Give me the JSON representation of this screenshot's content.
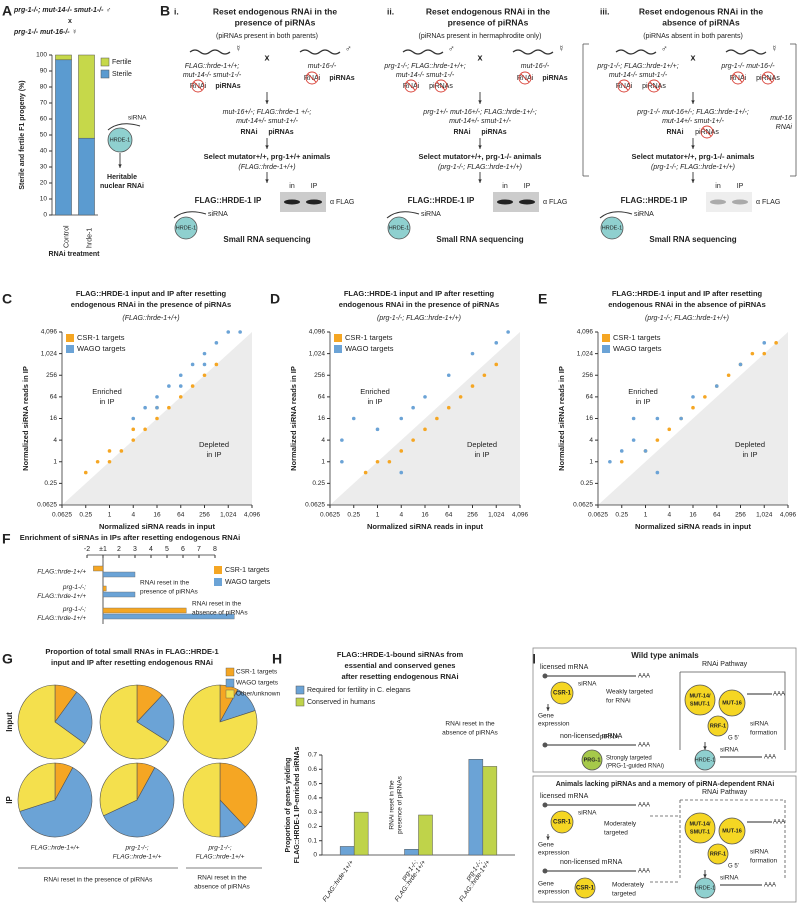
{
  "panel_labels": [
    "A",
    "B",
    "C",
    "D",
    "E",
    "F",
    "G",
    "H",
    "I"
  ],
  "A": {
    "title": [
      "prg-1-/-; mut-14-/- smut-1-/- ♂",
      "x",
      "prg-1-/- mut-16-/- ☿"
    ],
    "sirna": "siRNA",
    "hrde1": "HRDE-1",
    "outcome": [
      "Heritable",
      "nuclear RNAi"
    ]
  },
  "B": {
    "shared": {
      "cross": "x",
      "rnai": "RNAi",
      "pirnas": "piRNAs",
      "ip": "FLAG::HRDE-1 IP",
      "gel_in": "in",
      "gel_ip": "IP",
      "antibody": "α FLAG",
      "sirna": "siRNA",
      "hrde1": "HRDE-1",
      "seq": "Small RNA sequencing",
      "side": [
        "mut-16",
        "RNAi"
      ]
    },
    "columns": [
      {
        "numeral": "i.",
        "title": [
          "Reset endogenous RNAi in the",
          "presence of piRNAs"
        ],
        "note": "(piRNAs present in both parents)",
        "left_symbol": "☿",
        "right_symbol": "♂",
        "left": [
          "FLAG::hrde-1+/+;",
          "mut-14-/- smut-1-/-"
        ],
        "right": [
          "mut-16-/-"
        ],
        "pirnas_present": [
          true,
          true
        ],
        "progeny": [
          "mut-16+/-; FLAG::hrde-1 +/-;",
          "mut-14+/- smut-1+/-"
        ],
        "progeny_pirnas": true,
        "select": "Select mutator+/+, prg-1+/+ animals",
        "genotype": "(FLAG::hrde-1+/+)"
      },
      {
        "numeral": "ii.",
        "title": [
          "Reset endogenous RNAi in the",
          "presence of piRNAs"
        ],
        "note": "(piRNAs present in hermaphrodite only)",
        "left_symbol": "♂",
        "right_symbol": "☿",
        "left": [
          "prg-1-/-; FLAG::hrde-1+/+;",
          "mut-14-/- smut-1-/-"
        ],
        "right": [
          "mut-16-/-"
        ],
        "pirnas_present": [
          false,
          true
        ],
        "progeny": [
          "prg-1+/- mut-16+/-; FLAG::hrde-1+/-;",
          "mut-14+/- smut-1+/-"
        ],
        "progeny_pirnas": true,
        "select": "Select mutator+/+, prg-1-/- animals",
        "genotype": "(prg-1-/-; FLAG::hrde-1+/+)"
      },
      {
        "numeral": "iii.",
        "title": [
          "Reset endogenous RNAi in the",
          "absence of piRNAs"
        ],
        "note": "(piRNAs absent in both parents)",
        "left_symbol": "♂",
        "right_symbol": "☿",
        "left": [
          "prg-1-/-; FLAG::hrde-1+/+;",
          "mut-14-/- smut-1-/-"
        ],
        "right": [
          "prg-1-/- mut-16-/-"
        ],
        "pirnas_present": [
          false,
          false
        ],
        "progeny": [
          "prg-1-/- mut-16+/-; FLAG::hrde-1+/-;",
          "mut-14+/- smut-1+/-"
        ],
        "progeny_pirnas": false,
        "select": "Select mutator+/+, prg-1-/- animals",
        "genotype": "(prg-1-/-; FLAG::hrde-1+/+)"
      }
    ]
  },
  "I": {
    "top_title": "Wild type animals",
    "bottom_title": "Animals lacking piRNAs and a memory of piRNA-dependent RNAi",
    "licensed": "licensed mRNA",
    "nonlicensed": "non-licensed mRNA",
    "csr1": "CSR-1",
    "prg1": "PRG-1",
    "sirna": "siRNA",
    "pirna": "piRNA",
    "weak": [
      "Weakly targeted",
      "for RNAi"
    ],
    "strong": [
      "Strongly targeted",
      "(PRG-1-guided RNAi)"
    ],
    "moderate": [
      "Moderately",
      "targeted"
    ],
    "gene": [
      "Gene",
      "expression"
    ],
    "pathway": "RNAi Pathway",
    "mut14": [
      "MUT-14/",
      "SMUT-1"
    ],
    "mut16": "MUT-16",
    "rrf1": "RRF-1",
    "g5": "G 5'",
    "formation": [
      "siRNA",
      "formation"
    ],
    "aaa": "AAA",
    "hrde1": "HRDE-1"
  },
  "chart_data": [
    {
      "type": "bar",
      "stacked": true,
      "categories": [
        "Control",
        "hrde-1"
      ],
      "series": [
        {
          "name": "Fertile",
          "color": "#c6d84a",
          "values": [
            3,
            52
          ]
        },
        {
          "name": "Sterile",
          "color": "#5b9bd0",
          "values": [
            97,
            48
          ]
        }
      ],
      "ylim": [
        0,
        100
      ],
      "yticks": [
        0,
        10,
        20,
        30,
        40,
        50,
        60,
        70,
        80,
        90,
        100
      ],
      "ylabel": "Sterile and fertile F1 progeny (%)",
      "xlabel": "RNAi treatment"
    },
    {
      "type": "scatter",
      "title": [
        "FLAG::HRDE-1 input and IP after resetting",
        "endogenous RNAi in the presence of piRNAs"
      ],
      "subtitle": "(FLAG::hrde-1+/+)",
      "series": [
        {
          "name": "CSR-1 targets",
          "color": "#f5a623",
          "x": [
            0.25,
            0.5,
            1,
            1,
            2,
            4,
            4,
            8,
            16,
            16,
            32,
            64,
            128,
            256,
            512
          ],
          "values": [
            0.5,
            1,
            1,
            2,
            2,
            4,
            8,
            8,
            16,
            32,
            32,
            64,
            128,
            256,
            512
          ]
        },
        {
          "name": "WAGO targets",
          "color": "#6ba3d6",
          "x": [
            4,
            8,
            16,
            32,
            64,
            128,
            256,
            512,
            1024,
            2048,
            16,
            64,
            256
          ],
          "values": [
            16,
            32,
            64,
            128,
            256,
            512,
            1024,
            2048,
            4096,
            4096,
            32,
            128,
            512
          ]
        }
      ],
      "xlim": [
        0.0625,
        4096
      ],
      "ylim": [
        0.0625,
        4096
      ],
      "log_scale": true,
      "xticks": [
        0.0625,
        0.25,
        1,
        4,
        16,
        64,
        256,
        {
          "value": 1024,
          "label": "1,024"
        },
        {
          "value": 4096,
          "label": "4,096"
        }
      ],
      "yticks": [
        0.0625,
        0.25,
        1,
        4,
        16,
        64,
        256,
        {
          "value": 1024,
          "label": "1,024"
        },
        {
          "value": 4096,
          "label": "4,096"
        }
      ],
      "xlabel": "Normalized siRNA reads in input",
      "ylabel": "Normalized siRNA reads in IP",
      "annotations": [
        [
          "Enriched",
          "in IP"
        ],
        [
          "Depleted",
          "in IP"
        ]
      ]
    },
    {
      "type": "scatter",
      "title": [
        "FLAG::HRDE-1 input and IP after resetting",
        "endogenous RNAi in the presence of piRNAs"
      ],
      "subtitle": "(prg-1-/-; FLAG::hrde-1+/+)",
      "series": [
        {
          "name": "CSR-1 targets",
          "color": "#f5a623",
          "x": [
            0.5,
            1,
            2,
            4,
            8,
            16,
            32,
            64,
            128,
            256,
            512,
            1024
          ],
          "values": [
            0.5,
            1,
            1,
            2,
            4,
            8,
            16,
            32,
            64,
            128,
            256,
            512
          ]
        },
        {
          "name": "WAGO targets",
          "color": "#6ba3d6",
          "x": [
            0.125,
            0.125,
            0.25,
            1,
            4,
            8,
            16,
            64,
            256,
            1024,
            2048,
            4
          ],
          "values": [
            1,
            4,
            16,
            8,
            16,
            32,
            64,
            256,
            1024,
            2048,
            4096,
            0.5
          ]
        }
      ],
      "xlim": [
        0.0625,
        4096
      ],
      "ylim": [
        0.0625,
        4096
      ],
      "log_scale": true,
      "xticks": [
        0.0625,
        0.25,
        1,
        4,
        16,
        64,
        256,
        {
          "value": 1024,
          "label": "1,024"
        },
        {
          "value": 4096,
          "label": "4,096"
        }
      ],
      "yticks": [
        0.0625,
        0.25,
        1,
        4,
        16,
        64,
        256,
        {
          "value": 1024,
          "label": "1,024"
        },
        {
          "value": 4096,
          "label": "4,096"
        }
      ],
      "xlabel": "Normalized siRNA reads in input",
      "ylabel": "Normalized siRNA reads in IP",
      "annotations": [
        [
          "Enriched",
          "in IP"
        ],
        [
          "Depleted",
          "in IP"
        ]
      ]
    },
    {
      "type": "scatter",
      "title": [
        "FLAG::HRDE-1 input and IP after resetting",
        "endogenous RNAi in the absence of piRNAs"
      ],
      "subtitle": "(prg-1-/-; FLAG::hrde-1+/+)",
      "series": [
        {
          "name": "CSR-1 targets",
          "color": "#f5a623",
          "x": [
            0.25,
            1,
            2,
            4,
            8,
            16,
            32,
            64,
            128,
            256,
            512,
            1024,
            2048
          ],
          "values": [
            1,
            2,
            4,
            8,
            16,
            32,
            64,
            128,
            256,
            512,
            1024,
            1024,
            2048
          ]
        },
        {
          "name": "WAGO targets",
          "color": "#6ba3d6",
          "x": [
            0.125,
            0.25,
            0.5,
            1,
            2,
            8,
            16,
            64,
            256,
            1024,
            2,
            0.5
          ],
          "values": [
            1,
            2,
            4,
            2,
            16,
            16,
            64,
            128,
            512,
            2048,
            0.5,
            16
          ]
        }
      ],
      "xlim": [
        0.0625,
        4096
      ],
      "ylim": [
        0.0625,
        4096
      ],
      "log_scale": true,
      "xticks": [
        0.0625,
        0.25,
        1,
        4,
        16,
        64,
        256,
        {
          "value": 1024,
          "label": "1,024"
        },
        {
          "value": 4096,
          "label": "4,096"
        }
      ],
      "yticks": [
        0.0625,
        0.25,
        1,
        4,
        16,
        64,
        256,
        {
          "value": 1024,
          "label": "1,024"
        },
        {
          "value": 4096,
          "label": "4,096"
        }
      ],
      "xlabel": "Normalized siRNA reads in input",
      "ylabel": "Normalized siRNA reads in IP",
      "annotations": [
        [
          "Enriched",
          "in IP"
        ],
        [
          "Depleted",
          "in IP"
        ]
      ]
    },
    {
      "type": "hbar",
      "title": "Enrichment of siRNAs in IPs after resetting endogenous RNAi",
      "categories": [
        [
          "FLAG::hrde-1+/+"
        ],
        [
          "prg-1-/-;",
          "FLAG::hrde-1+/+"
        ],
        [
          "prg-1-/-;",
          "FLAG::hrde-1+/+"
        ]
      ],
      "series": [
        {
          "name": "CSR-1 targets",
          "color": "#f5a623",
          "values": [
            -1.6,
            1.2,
            6.2
          ]
        },
        {
          "name": "WAGO targets",
          "color": "#6ba3d6",
          "values": [
            3,
            3,
            9.2
          ]
        }
      ],
      "xlim": [
        -2.5,
        9.5
      ],
      "xticks": [
        -2,
        {
          "value": 1,
          "label": "±1"
        },
        2,
        3,
        4,
        5,
        6,
        7,
        8
      ],
      "annotations": [
        [
          "RNAi reset in the",
          "presence of piRNAs"
        ],
        [
          "RNAi reset in the",
          "absence of piRNAs"
        ]
      ]
    },
    {
      "type": "pie",
      "title": [
        "Proportion of total small RNAs in FLAG::HRDE-1",
        "input and IP after resetting endogenous RNAi"
      ],
      "rows": [
        "Input",
        "IP"
      ],
      "columns": [
        [
          "FLAG::hrde-1+/+"
        ],
        [
          "prg-1-/-;",
          "FLAG::hrde-1+/+"
        ],
        [
          "prg-1-/-;",
          "FLAG::hrde-1+/+"
        ]
      ],
      "series": [
        {
          "name": "CSR-1 targets",
          "color": "#f5a623",
          "values": [
            10,
            12,
            8,
            8,
            8,
            38
          ]
        },
        {
          "name": "WAGO targets",
          "color": "#6ba3d6",
          "values": [
            25,
            22,
            12,
            62,
            60,
            12
          ]
        },
        {
          "name": "Other/unknown",
          "color": "#f4e04d",
          "values": [
            65,
            66,
            80,
            30,
            32,
            50
          ]
        }
      ],
      "groups": [
        [
          "RNAi reset in the presence of piRNAs"
        ],
        [
          "RNAi reset in the",
          "absence of piRNAs"
        ]
      ]
    },
    {
      "type": "bar",
      "stacked": false,
      "title": [
        "FLAG::HRDE-1-bound siRNAs from",
        "essential and conserved genes",
        "after resetting endogenous RNAi"
      ],
      "categories": [
        [
          "FLAG::hrde-1+/+"
        ],
        [
          "prg-1-/-;",
          "FLAG::hrde-1+/+"
        ],
        [
          "prg-1-/-;",
          "FLAG::hrde-1+/+"
        ]
      ],
      "series": [
        {
          "name": "Required for fertility in C. elegans",
          "color": "#6ba3d6",
          "values": [
            0.06,
            0.04,
            0.67
          ]
        },
        {
          "name": "Conserved in humans",
          "color": "#bfd34a",
          "values": [
            0.3,
            0.28,
            0.62
          ]
        }
      ],
      "ylim": [
        0,
        0.7
      ],
      "yticks": [
        0,
        0.1,
        0.2,
        0.3,
        0.4,
        0.5,
        0.6,
        0.7
      ],
      "ylabel": [
        "Proportion of genes yielding",
        "FLAG::HRDE-1 IP-enriched siRNAs"
      ],
      "annotations": [
        [
          "RNAi reset in the",
          "presence of piRNAs"
        ],
        [
          "RNAi reset in the",
          "absence of piRNAs"
        ]
      ]
    }
  ]
}
